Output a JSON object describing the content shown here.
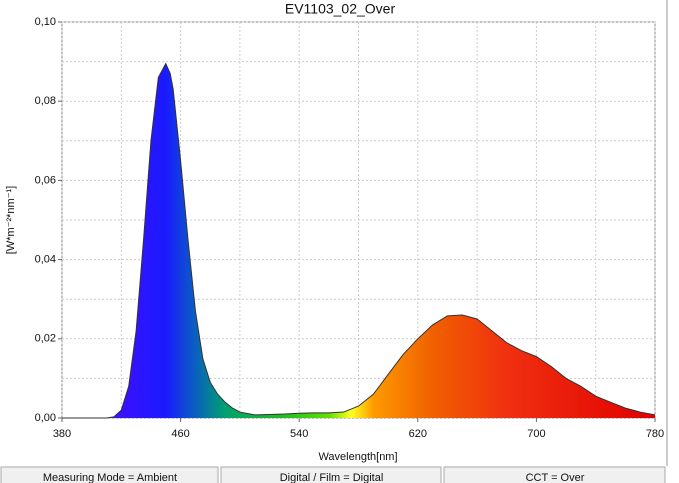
{
  "chart_data": {
    "type": "area",
    "title": "EV1103_02_Over",
    "x_label": "Wavelength[nm]",
    "y_label": "[W*m⁻²*nm⁻¹]",
    "x": [
      380,
      390,
      400,
      410,
      415,
      420,
      425,
      430,
      435,
      440,
      445,
      450,
      453,
      455,
      460,
      465,
      470,
      475,
      480,
      485,
      490,
      495,
      500,
      510,
      520,
      530,
      540,
      550,
      560,
      570,
      580,
      590,
      600,
      610,
      620,
      630,
      640,
      650,
      660,
      670,
      680,
      690,
      700,
      710,
      720,
      730,
      740,
      750,
      760,
      770,
      780
    ],
    "values": [
      0,
      0,
      0,
      0,
      0.0003,
      0.002,
      0.008,
      0.022,
      0.045,
      0.07,
      0.086,
      0.0895,
      0.087,
      0.083,
      0.065,
      0.045,
      0.027,
      0.015,
      0.009,
      0.006,
      0.004,
      0.0025,
      0.0015,
      0.0008,
      0.0009,
      0.001,
      0.0012,
      0.0013,
      0.0013,
      0.0015,
      0.003,
      0.006,
      0.011,
      0.016,
      0.02,
      0.0235,
      0.0258,
      0.026,
      0.025,
      0.022,
      0.019,
      0.017,
      0.0155,
      0.013,
      0.01,
      0.008,
      0.0055,
      0.004,
      0.0025,
      0.0015,
      0.0008
    ],
    "xlim": [
      380,
      780
    ],
    "ylim": [
      0,
      0.1
    ],
    "xticks": [
      380,
      460,
      540,
      620,
      700,
      780
    ],
    "yticks": [
      {
        "value": 0,
        "label": "0,00"
      },
      {
        "value": 0.02,
        "label": "0,02"
      },
      {
        "value": 0.04,
        "label": "0,04"
      },
      {
        "value": 0.06,
        "label": "0,06"
      },
      {
        "value": 0.08,
        "label": "0,08"
      },
      {
        "value": 0.1,
        "label": "0,10"
      }
    ],
    "minor_xticks": [
      420,
      500,
      580,
      660,
      740
    ],
    "minor_yticks": [
      0.01,
      0.03,
      0.05,
      0.07,
      0.09
    ],
    "grid": true,
    "fill_gradient": [
      {
        "nm": 420,
        "color": "#3a10ff"
      },
      {
        "nm": 450,
        "color": "#1a1aff"
      },
      {
        "nm": 470,
        "color": "#0a60c0"
      },
      {
        "nm": 490,
        "color": "#00a070"
      },
      {
        "nm": 530,
        "color": "#20c020"
      },
      {
        "nm": 560,
        "color": "#60e000"
      },
      {
        "nm": 575,
        "color": "#ffff20"
      },
      {
        "nm": 590,
        "color": "#ff9a00"
      },
      {
        "nm": 630,
        "color": "#f06000"
      },
      {
        "nm": 680,
        "color": "#f03010"
      },
      {
        "nm": 780,
        "color": "#e00000"
      }
    ],
    "line_color": "#333333"
  },
  "status_bar": [
    "Measuring Mode = Ambient",
    "Digital / Film = Digital",
    "CCT = Over"
  ]
}
